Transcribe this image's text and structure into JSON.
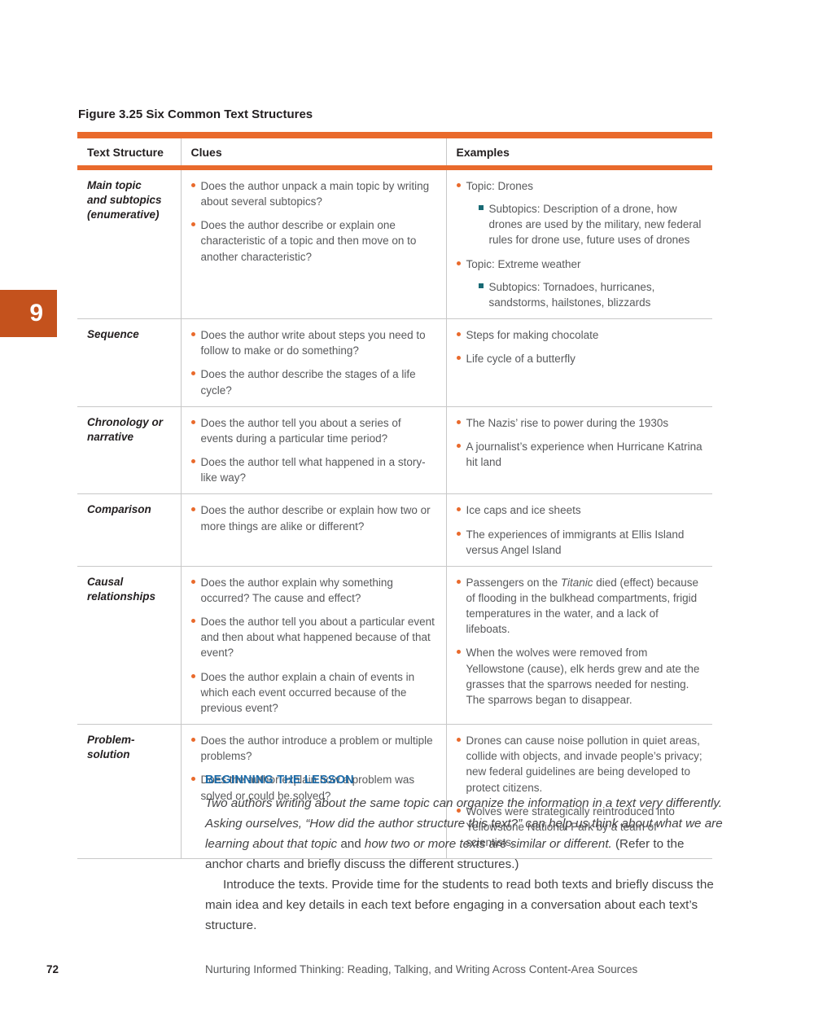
{
  "colors": {
    "accent_orange": "#e96a2c",
    "tab_orange": "#c4521d",
    "teal_bullet": "#186a74",
    "heading_blue": "#1a6aa8"
  },
  "page": {
    "tab_number": "9",
    "page_number": "72",
    "running_footer": "Nurturing Informed Thinking: Reading, Talking, and Writing Across Content-Area Sources"
  },
  "figure": {
    "label": "Figure 3.25",
    "title": " Six Common Text Structures"
  },
  "table": {
    "headers": [
      "Text Structure",
      "Clues",
      "Examples"
    ],
    "rows": [
      {
        "structure": "Main topic\nand subtopics\n(enumerative)",
        "clues": [
          "Does the author unpack a main topic by writing about several subtopics?",
          "Does the author describe or explain one characteristic of a topic and then move on to another characteristic?"
        ],
        "examples": [
          {
            "text": "Topic: Drones",
            "subs": [
              "Subtopics: Description of a drone, how drones are used by the military, new federal rules for drone use, future uses of drones"
            ]
          },
          {
            "text": "Topic: Extreme weather",
            "subs": [
              "Subtopics: Tornadoes, hurricanes, sandstorms, hailstones, blizzards"
            ]
          }
        ]
      },
      {
        "structure": "Sequence",
        "clues": [
          "Does the author write about steps you need to follow to make or do something?",
          "Does the author describe the stages of a life cycle?"
        ],
        "examples": [
          {
            "text": "Steps for making chocolate"
          },
          {
            "text": "Life cycle of a butterfly"
          }
        ]
      },
      {
        "structure": "Chronology or\nnarrative",
        "clues": [
          "Does the author tell you about a series of events during a particular time period?",
          "Does the author tell what happened in a story-like way?"
        ],
        "examples": [
          {
            "text": "The Nazis’ rise to power during the 1930s"
          },
          {
            "text": "A journalist’s experience when Hurricane Katrina hit land"
          }
        ]
      },
      {
        "structure": "Comparison",
        "clues": [
          "Does the author describe or explain how two or more things are alike or different?"
        ],
        "examples": [
          {
            "text": "Ice caps and ice sheets"
          },
          {
            "text": "The experiences of immigrants at Ellis Island versus Angel Island"
          }
        ]
      },
      {
        "structure": "Causal\nrelationships",
        "clues": [
          "Does the author explain why something occurred? The cause and effect?",
          "Does the author tell you about a particular event and then about what happened because of that event?",
          "Does the author explain a chain of events in which each event occurred because of the previous event?"
        ],
        "examples": [
          {
            "text": "Passengers on the *Titanic* died (effect) because of flooding in the bulkhead compartments, frigid temperatures in the water, and a lack of lifeboats."
          },
          {
            "text": "When the wolves were removed from Yellowstone (cause), elk herds grew and ate the grasses that the sparrows needed for nesting. The sparrows began to disappear."
          }
        ]
      },
      {
        "structure": "Problem-\nsolution",
        "clues": [
          "Does the author introduce a problem or multiple problems?",
          "Does the author explain how a problem was solved or could be solved?"
        ],
        "examples": [
          {
            "text": "Drones can cause noise pollution in quiet areas, collide with objects, and invade people’s privacy; new federal guidelines are being developed to protect citizens."
          },
          {
            "text": "Wolves were strategically reintroduced into Yellowstone National Park by a team of scientists."
          }
        ]
      }
    ]
  },
  "lesson": {
    "heading": "BEGINNING THE LESSON",
    "para1_segments": [
      {
        "style": "italic",
        "text": "Two authors writing about the same topic can organize the information in a text very differently. Asking ourselves, “How did the author structure this text?” can help us think about what we are learning about that topic "
      },
      {
        "style": "roman",
        "text": "and "
      },
      {
        "style": "italic",
        "text": "how two or more texts are similar or different. "
      },
      {
        "style": "roman",
        "text": "(Refer to the anchor charts and briefly discuss the different structures.)"
      }
    ],
    "para2": "Introduce the texts. Provide time for the students to read both texts and briefly discuss the main idea and key details in each text before engaging in a conversation about each text’s structure."
  }
}
